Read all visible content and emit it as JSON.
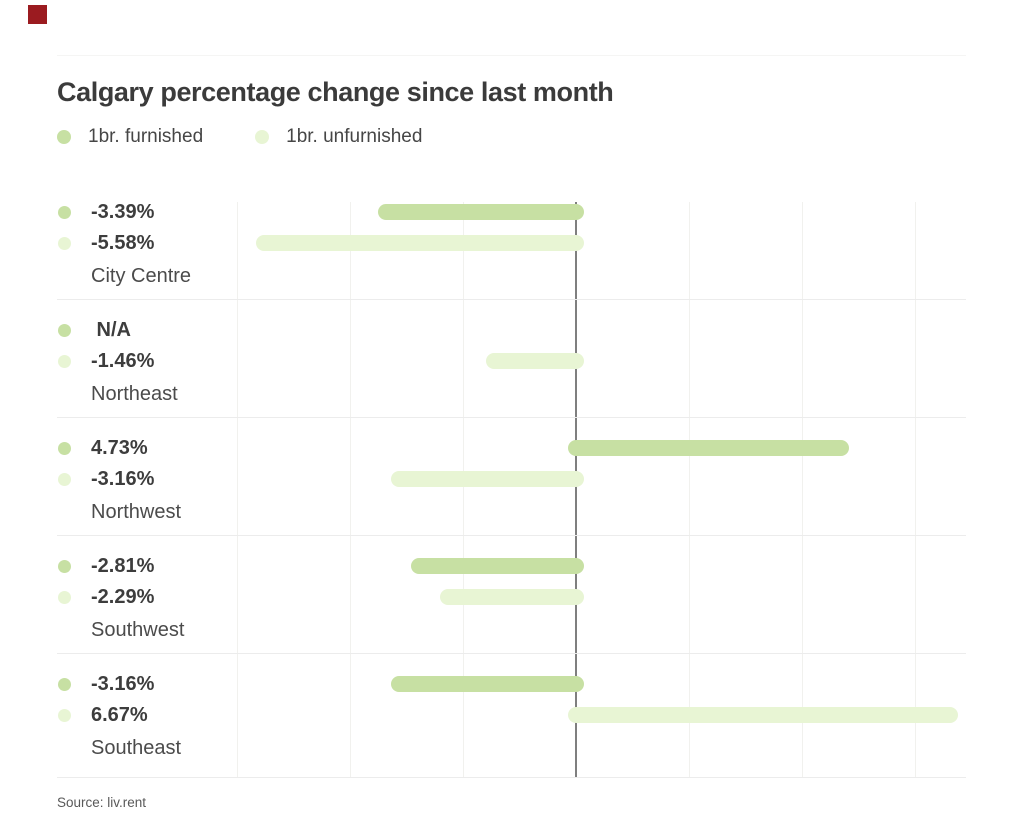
{
  "page": {
    "background_color": "#ffffff",
    "accent_block_color": "#9b1b20"
  },
  "header": {
    "title": "Calgary percentage change since last month"
  },
  "legend": {
    "items": [
      {
        "label": "1br. furnished",
        "color": "#c7e0a3"
      },
      {
        "label": "1br. unfurnished",
        "color": "#e8f5d4"
      }
    ]
  },
  "footer": {
    "source": "Source: liv.rent"
  },
  "chart_data": {
    "type": "bar",
    "orientation": "horizontal",
    "title": "Calgary percentage change since last month",
    "categories": [
      "City Centre",
      "Northeast",
      "Northwest",
      "Southwest",
      "Southeast"
    ],
    "series": [
      {
        "name": "1br. furnished",
        "color": "#c7e0a3",
        "values": [
          -3.39,
          null,
          4.73,
          -2.81,
          -3.16
        ],
        "value_labels": [
          "-3.39%",
          " N/A",
          "4.73%",
          "-2.81%",
          "-3.16%"
        ]
      },
      {
        "name": "1br. unfurnished",
        "color": "#e8f5d4",
        "values": [
          -5.58,
          -1.46,
          -3.16,
          -2.29,
          6.67
        ],
        "value_labels": [
          "-5.58%",
          "-1.46%",
          "-3.16%",
          "-2.29%",
          "6.67%"
        ]
      }
    ],
    "x_axis": {
      "unit": "%",
      "gridline_step": 2,
      "approx_min": -6,
      "approx_max": 7,
      "zero_line": true,
      "tick_labels_visible": false
    },
    "grid": "vertical-only",
    "legend_position": "top-left",
    "source": "liv.rent"
  }
}
